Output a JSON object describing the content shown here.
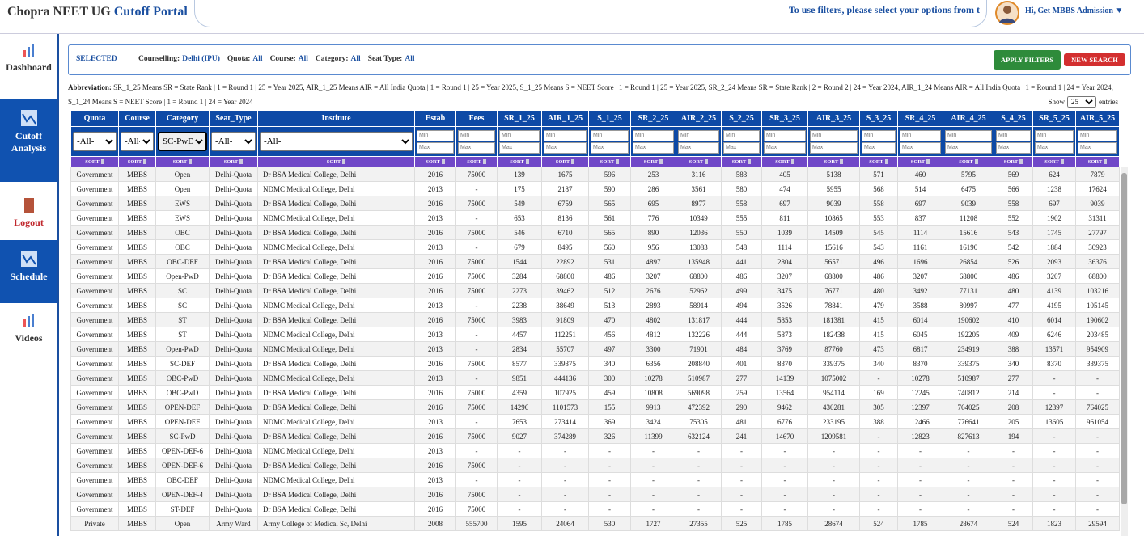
{
  "header": {
    "brand": "Chopra NEET UG",
    "brand_highlight": "Cutoff Portal",
    "notice": "To use filters, please select your options from t",
    "user": "Hi, Get MBBS Admission ▼"
  },
  "sidebar": [
    "Dashboard",
    "Cutoff Analysis",
    "Logout",
    "Schedule",
    "Videos"
  ],
  "filters": {
    "selected": "SELECTED",
    "items": [
      {
        "label": "Counselling:",
        "value": "Delhi (IPU)"
      },
      {
        "label": "Quota:",
        "value": "All"
      },
      {
        "label": "Course:",
        "value": "All"
      },
      {
        "label": "Category:",
        "value": "All"
      },
      {
        "label": "Seat Type:",
        "value": "All"
      }
    ],
    "apply": "APPLY FILTERS",
    "new_search": "NEW SEARCH"
  },
  "abbreviation": {
    "label": "Abbreviation:",
    "text": "SR_1_25 Means SR = State Rank | 1 = Round 1 | 25 = Year 2025, AIR_1_25 Means AIR = All India Quota | 1 = Round 1 | 25 = Year 2025, S_1_25 Means S = NEET Score | 1 = Round 1 | 25 = Year 2025, SR_2_24 Means SR = State Rank | 2 = Round 2 | 24 = Year 2024, AIR_1_24 Means AIR = All India Quota | 1 = Round 1 | 24 = Year 2024, S_1_24 Means S = NEET Score | 1 = Round 1 | 24 = Year 2024"
  },
  "show": {
    "label": "Show",
    "value": "25",
    "suffix": "entries"
  },
  "table": {
    "columns": [
      "Quota",
      "Course",
      "Category",
      "Seat_Type",
      "Institute",
      "Estab",
      "Fees",
      "SR_1_25",
      "AIR_1_25",
      "S_1_25",
      "SR_2_25",
      "AIR_2_25",
      "S_2_25",
      "SR_3_25",
      "AIR_3_25",
      "S_3_25",
      "SR_4_25",
      "AIR_4_25",
      "S_4_25",
      "SR_5_25",
      "AIR_5_25"
    ],
    "select_values": [
      "-All-",
      "-All-",
      "SC-PwD",
      "-All-",
      "-All-"
    ],
    "min": "Min",
    "max": "Max",
    "sort": "SORT",
    "rows": [
      [
        "Government",
        "MBBS",
        "Open",
        "Delhi-Quota",
        "Dr BSA Medical College, Delhi",
        2016,
        75000,
        139,
        1675,
        596,
        253,
        3116,
        583,
        405,
        5138,
        571,
        460,
        5795,
        569,
        624,
        7879
      ],
      [
        "Government",
        "MBBS",
        "Open",
        "Delhi-Quota",
        "NDMC Medical College, Delhi",
        2013,
        "-",
        175,
        2187,
        590,
        286,
        3561,
        580,
        474,
        5955,
        568,
        514,
        6475,
        566,
        1238,
        17624
      ],
      [
        "Government",
        "MBBS",
        "EWS",
        "Delhi-Quota",
        "Dr BSA Medical College, Delhi",
        2016,
        75000,
        549,
        6759,
        565,
        695,
        8977,
        558,
        697,
        9039,
        558,
        697,
        9039,
        558,
        697,
        9039
      ],
      [
        "Government",
        "MBBS",
        "EWS",
        "Delhi-Quota",
        "NDMC Medical College, Delhi",
        2013,
        "-",
        653,
        8136,
        561,
        776,
        10349,
        555,
        811,
        10865,
        553,
        837,
        11208,
        552,
        1902,
        31311
      ],
      [
        "Government",
        "MBBS",
        "OBC",
        "Delhi-Quota",
        "Dr BSA Medical College, Delhi",
        2016,
        75000,
        546,
        6710,
        565,
        890,
        12036,
        550,
        1039,
        14509,
        545,
        1114,
        15616,
        543,
        1745,
        27797
      ],
      [
        "Government",
        "MBBS",
        "OBC",
        "Delhi-Quota",
        "NDMC Medical College, Delhi",
        2013,
        "-",
        679,
        8495,
        560,
        956,
        13083,
        548,
        1114,
        15616,
        543,
        1161,
        16190,
        542,
        1884,
        30923
      ],
      [
        "Government",
        "MBBS",
        "OBC-DEF",
        "Delhi-Quota",
        "Dr BSA Medical College, Delhi",
        2016,
        75000,
        1544,
        22892,
        531,
        4897,
        135948,
        441,
        2804,
        56571,
        496,
        1696,
        26854,
        526,
        2093,
        36376
      ],
      [
        "Government",
        "MBBS",
        "Open-PwD",
        "Delhi-Quota",
        "Dr BSA Medical College, Delhi",
        2016,
        75000,
        3284,
        68800,
        486,
        3207,
        68800,
        486,
        3207,
        68800,
        486,
        3207,
        68800,
        486,
        3207,
        68800
      ],
      [
        "Government",
        "MBBS",
        "SC",
        "Delhi-Quota",
        "Dr BSA Medical College, Delhi",
        2016,
        75000,
        2273,
        39462,
        512,
        2676,
        52962,
        499,
        3475,
        76771,
        480,
        3492,
        77131,
        480,
        4139,
        103216
      ],
      [
        "Government",
        "MBBS",
        "SC",
        "Delhi-Quota",
        "NDMC Medical College, Delhi",
        2013,
        "-",
        2238,
        38649,
        513,
        2893,
        58914,
        494,
        3526,
        78841,
        479,
        3588,
        80997,
        477,
        4195,
        105145
      ],
      [
        "Government",
        "MBBS",
        "ST",
        "Delhi-Quota",
        "Dr BSA Medical College, Delhi",
        2016,
        75000,
        3983,
        91809,
        470,
        4802,
        131817,
        444,
        5853,
        181381,
        415,
        6014,
        190602,
        410,
        6014,
        190602
      ],
      [
        "Government",
        "MBBS",
        "ST",
        "Delhi-Quota",
        "NDMC Medical College, Delhi",
        2013,
        "-",
        4457,
        112251,
        456,
        4812,
        132226,
        444,
        5873,
        182438,
        415,
        6045,
        192205,
        409,
        6246,
        203485
      ],
      [
        "Government",
        "MBBS",
        "Open-PwD",
        "Delhi-Quota",
        "NDMC Medical College, Delhi",
        2013,
        "-",
        2834,
        55707,
        497,
        3300,
        71901,
        484,
        3769,
        87760,
        473,
        6817,
        234919,
        388,
        13571,
        954909
      ],
      [
        "Government",
        "MBBS",
        "SC-DEF",
        "Delhi-Quota",
        "Dr BSA Medical College, Delhi",
        2016,
        75000,
        8577,
        339375,
        340,
        6356,
        208840,
        401,
        8370,
        339375,
        340,
        8370,
        339375,
        340,
        8370,
        339375
      ],
      [
        "Government",
        "MBBS",
        "OBC-PwD",
        "Delhi-Quota",
        "NDMC Medical College, Delhi",
        2013,
        "-",
        9851,
        444136,
        300,
        10278,
        510987,
        277,
        14139,
        1075002,
        "-",
        10278,
        510987,
        277,
        "-",
        "-"
      ],
      [
        "Government",
        "MBBS",
        "OBC-PwD",
        "Delhi-Quota",
        "Dr BSA Medical College, Delhi",
        2016,
        75000,
        4359,
        107925,
        459,
        10808,
        569098,
        259,
        13564,
        954114,
        169,
        12245,
        740812,
        214,
        "-",
        "-"
      ],
      [
        "Government",
        "MBBS",
        "OPEN-DEF",
        "Delhi-Quota",
        "Dr BSA Medical College, Delhi",
        2016,
        75000,
        14296,
        1101573,
        155,
        9913,
        472392,
        290,
        9462,
        430281,
        305,
        12397,
        764025,
        208,
        12397,
        764025
      ],
      [
        "Government",
        "MBBS",
        "OPEN-DEF",
        "Delhi-Quota",
        "NDMC Medical College, Delhi",
        2013,
        "-",
        7653,
        273414,
        369,
        3424,
        75305,
        481,
        6776,
        233195,
        388,
        12466,
        776641,
        205,
        13605,
        961054
      ],
      [
        "Government",
        "MBBS",
        "SC-PwD",
        "Delhi-Quota",
        "Dr BSA Medical College, Delhi",
        2016,
        75000,
        9027,
        374289,
        326,
        11399,
        632124,
        241,
        14670,
        1209581,
        "-",
        12823,
        827613,
        194,
        "-",
        "-"
      ],
      [
        "Government",
        "MBBS",
        "OPEN-DEF-6",
        "Delhi-Quota",
        "NDMC Medical College, Delhi",
        2013,
        "-",
        "-",
        "-",
        "-",
        "-",
        "-",
        "-",
        "-",
        "-",
        "-",
        "-",
        "-",
        "-",
        "-",
        "-"
      ],
      [
        "Government",
        "MBBS",
        "OPEN-DEF-6",
        "Delhi-Quota",
        "Dr BSA Medical College, Delhi",
        2016,
        75000,
        "-",
        "-",
        "-",
        "-",
        "-",
        "-",
        "-",
        "-",
        "-",
        "-",
        "-",
        "-",
        "-",
        "-"
      ],
      [
        "Government",
        "MBBS",
        "OBC-DEF",
        "Delhi-Quota",
        "NDMC Medical College, Delhi",
        2013,
        "-",
        "-",
        "-",
        "-",
        "-",
        "-",
        "-",
        "-",
        "-",
        "-",
        "-",
        "-",
        "-",
        "-",
        "-"
      ],
      [
        "Government",
        "MBBS",
        "OPEN-DEF-4",
        "Delhi-Quota",
        "Dr BSA Medical College, Delhi",
        2016,
        75000,
        "-",
        "-",
        "-",
        "-",
        "-",
        "-",
        "-",
        "-",
        "-",
        "-",
        "-",
        "-",
        "-",
        "-"
      ],
      [
        "Government",
        "MBBS",
        "ST-DEF",
        "Delhi-Quota",
        "Dr BSA Medical College, Delhi",
        2016,
        75000,
        "-",
        "-",
        "-",
        "-",
        "-",
        "-",
        "-",
        "-",
        "-",
        "-",
        "-",
        "-",
        "-",
        "-"
      ],
      [
        "Private",
        "MBBS",
        "Open",
        "Army Ward",
        "Army College of Medical Sc, Delhi",
        2008,
        555700,
        1595,
        24064,
        530,
        1727,
        27355,
        525,
        1785,
        28674,
        524,
        1785,
        28674,
        524,
        1823,
        29594
      ]
    ]
  }
}
